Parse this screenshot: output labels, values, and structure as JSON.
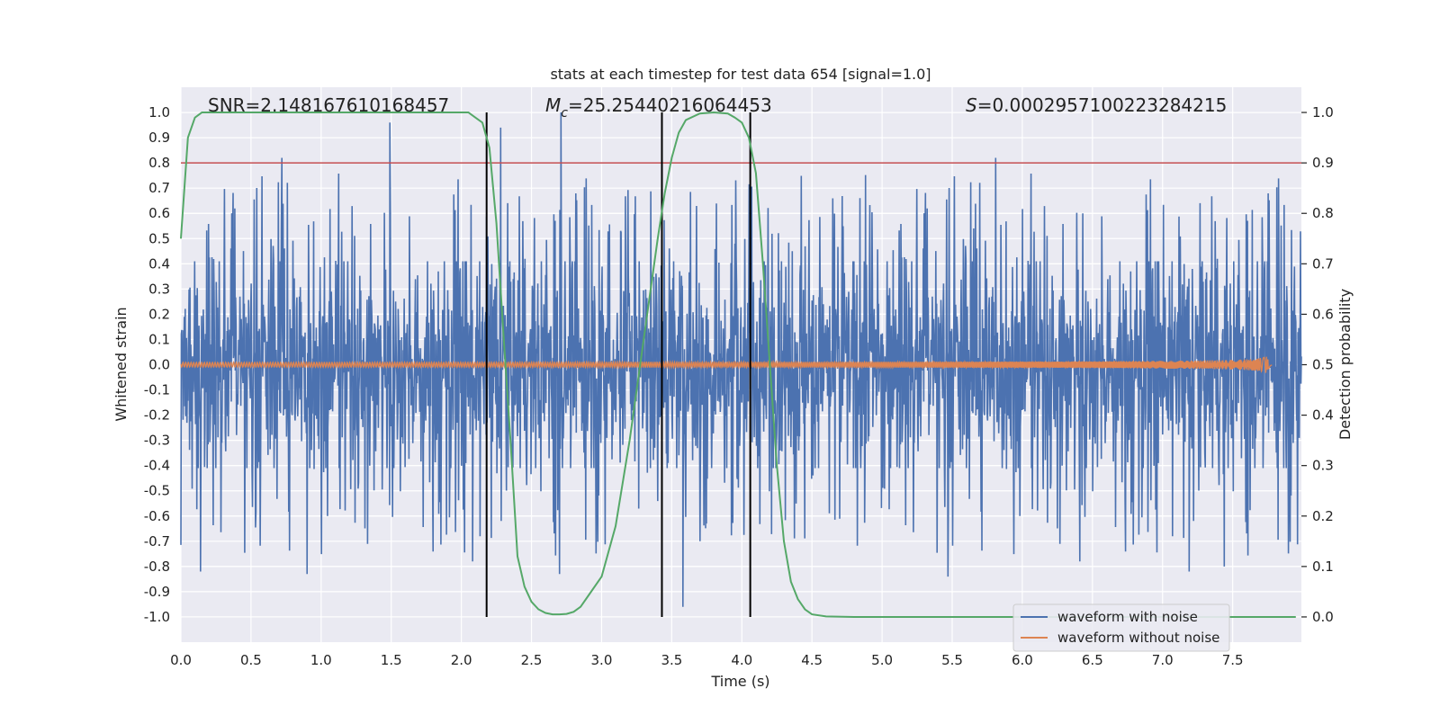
{
  "chart_data": {
    "type": "line",
    "title": "stats at each timestep for test data 654 [signal=1.0]",
    "xlabel": "Time (s)",
    "ylabel": "Whitened strain",
    "ylabel_right": "Detection probability",
    "xlim": [
      0.0,
      7.99
    ],
    "ylim": [
      -1.1,
      1.1
    ],
    "ylim_right": [
      -0.05,
      1.05
    ],
    "x_ticks": [
      "0.0",
      "0.5",
      "1.0",
      "1.5",
      "2.0",
      "2.5",
      "3.0",
      "3.5",
      "4.0",
      "4.5",
      "5.0",
      "5.5",
      "6.0",
      "6.5",
      "7.0",
      "7.5"
    ],
    "y_ticks": [
      "-1.0",
      "-0.9",
      "-0.8",
      "-0.7",
      "-0.6",
      "-0.5",
      "-0.4",
      "-0.3",
      "-0.2",
      "-0.1",
      "0.0",
      "0.1",
      "0.2",
      "0.3",
      "0.4",
      "0.5",
      "0.6",
      "0.7",
      "0.8",
      "0.9",
      "1.0"
    ],
    "y_ticks_right": [
      "0.0",
      "0.1",
      "0.2",
      "0.3",
      "0.4",
      "0.5",
      "0.6",
      "0.7",
      "0.8",
      "0.9",
      "1.0"
    ],
    "grid": true,
    "legend_position": "bottom-right",
    "annotations": {
      "snr": "SNR=2.148167610168457",
      "mc_symbol": "M",
      "mc_sub": "c",
      "mc_value": "=25.25440216064453",
      "s_symbol": "S",
      "s_value": "=0.0002957100223284215"
    },
    "threshold": {
      "y": 0.9,
      "axis": "right",
      "color": "#c44e52"
    },
    "vertical_lines": [
      2.18,
      3.43,
      4.06
    ],
    "series": [
      {
        "name": "waveform with noise",
        "color": "#4c72b0",
        "kind": "noise",
        "x_range": [
          0.0,
          7.99
        ],
        "band": 0.41,
        "notable_peaks": [
          {
            "x": 1.49,
            "y": 0.96
          },
          {
            "x": 2.28,
            "y": 0.94
          },
          {
            "x": 2.71,
            "y": 1.0
          },
          {
            "x": 0.72,
            "y": 0.82
          },
          {
            "x": 5.81,
            "y": 0.82
          },
          {
            "x": 0.14,
            "y": -0.82
          },
          {
            "x": 0.9,
            "y": -0.83
          },
          {
            "x": 2.7,
            "y": -0.83
          },
          {
            "x": 3.58,
            "y": -0.96
          },
          {
            "x": 5.47,
            "y": -0.84
          },
          {
            "x": 7.19,
            "y": -0.82
          },
          {
            "x": 2.08,
            "y": -0.78
          },
          {
            "x": 6.41,
            "y": -0.78
          },
          {
            "x": 7.44,
            "y": -0.8
          }
        ]
      },
      {
        "name": "waveform without noise",
        "color": "#dd8452",
        "kind": "chirp",
        "x_range": [
          0.0,
          7.78
        ],
        "merger_time": 7.76,
        "peak_amplitude": 0.15
      },
      {
        "name": "detection probability",
        "color": "#55a868",
        "axis": "right",
        "x": [
          0.0,
          0.05,
          0.1,
          0.15,
          0.2,
          0.3,
          0.5,
          1.0,
          1.5,
          1.9,
          2.0,
          2.05,
          2.1,
          2.15,
          2.2,
          2.25,
          2.3,
          2.35,
          2.4,
          2.45,
          2.5,
          2.55,
          2.6,
          2.65,
          2.7,
          2.75,
          2.8,
          2.85,
          2.9,
          3.0,
          3.1,
          3.2,
          3.3,
          3.4,
          3.45,
          3.5,
          3.55,
          3.6,
          3.7,
          3.8,
          3.9,
          3.95,
          4.0,
          4.05,
          4.1,
          4.15,
          4.2,
          4.25,
          4.3,
          4.35,
          4.4,
          4.45,
          4.5,
          4.6,
          4.8,
          5.5,
          6.5,
          7.5,
          7.95
        ],
        "values": [
          0.75,
          0.95,
          0.99,
          1.0,
          1.0,
          1.0,
          1.0,
          1.0,
          1.0,
          1.0,
          1.0,
          1.0,
          0.99,
          0.98,
          0.93,
          0.78,
          0.56,
          0.35,
          0.12,
          0.06,
          0.03,
          0.015,
          0.008,
          0.005,
          0.005,
          0.006,
          0.01,
          0.02,
          0.04,
          0.08,
          0.18,
          0.35,
          0.55,
          0.75,
          0.84,
          0.91,
          0.96,
          0.985,
          0.998,
          1.0,
          0.998,
          0.99,
          0.98,
          0.95,
          0.88,
          0.7,
          0.5,
          0.3,
          0.15,
          0.07,
          0.035,
          0.015,
          0.005,
          0.001,
          0.0,
          0.0,
          0.0,
          0.0,
          0.0
        ]
      }
    ]
  }
}
